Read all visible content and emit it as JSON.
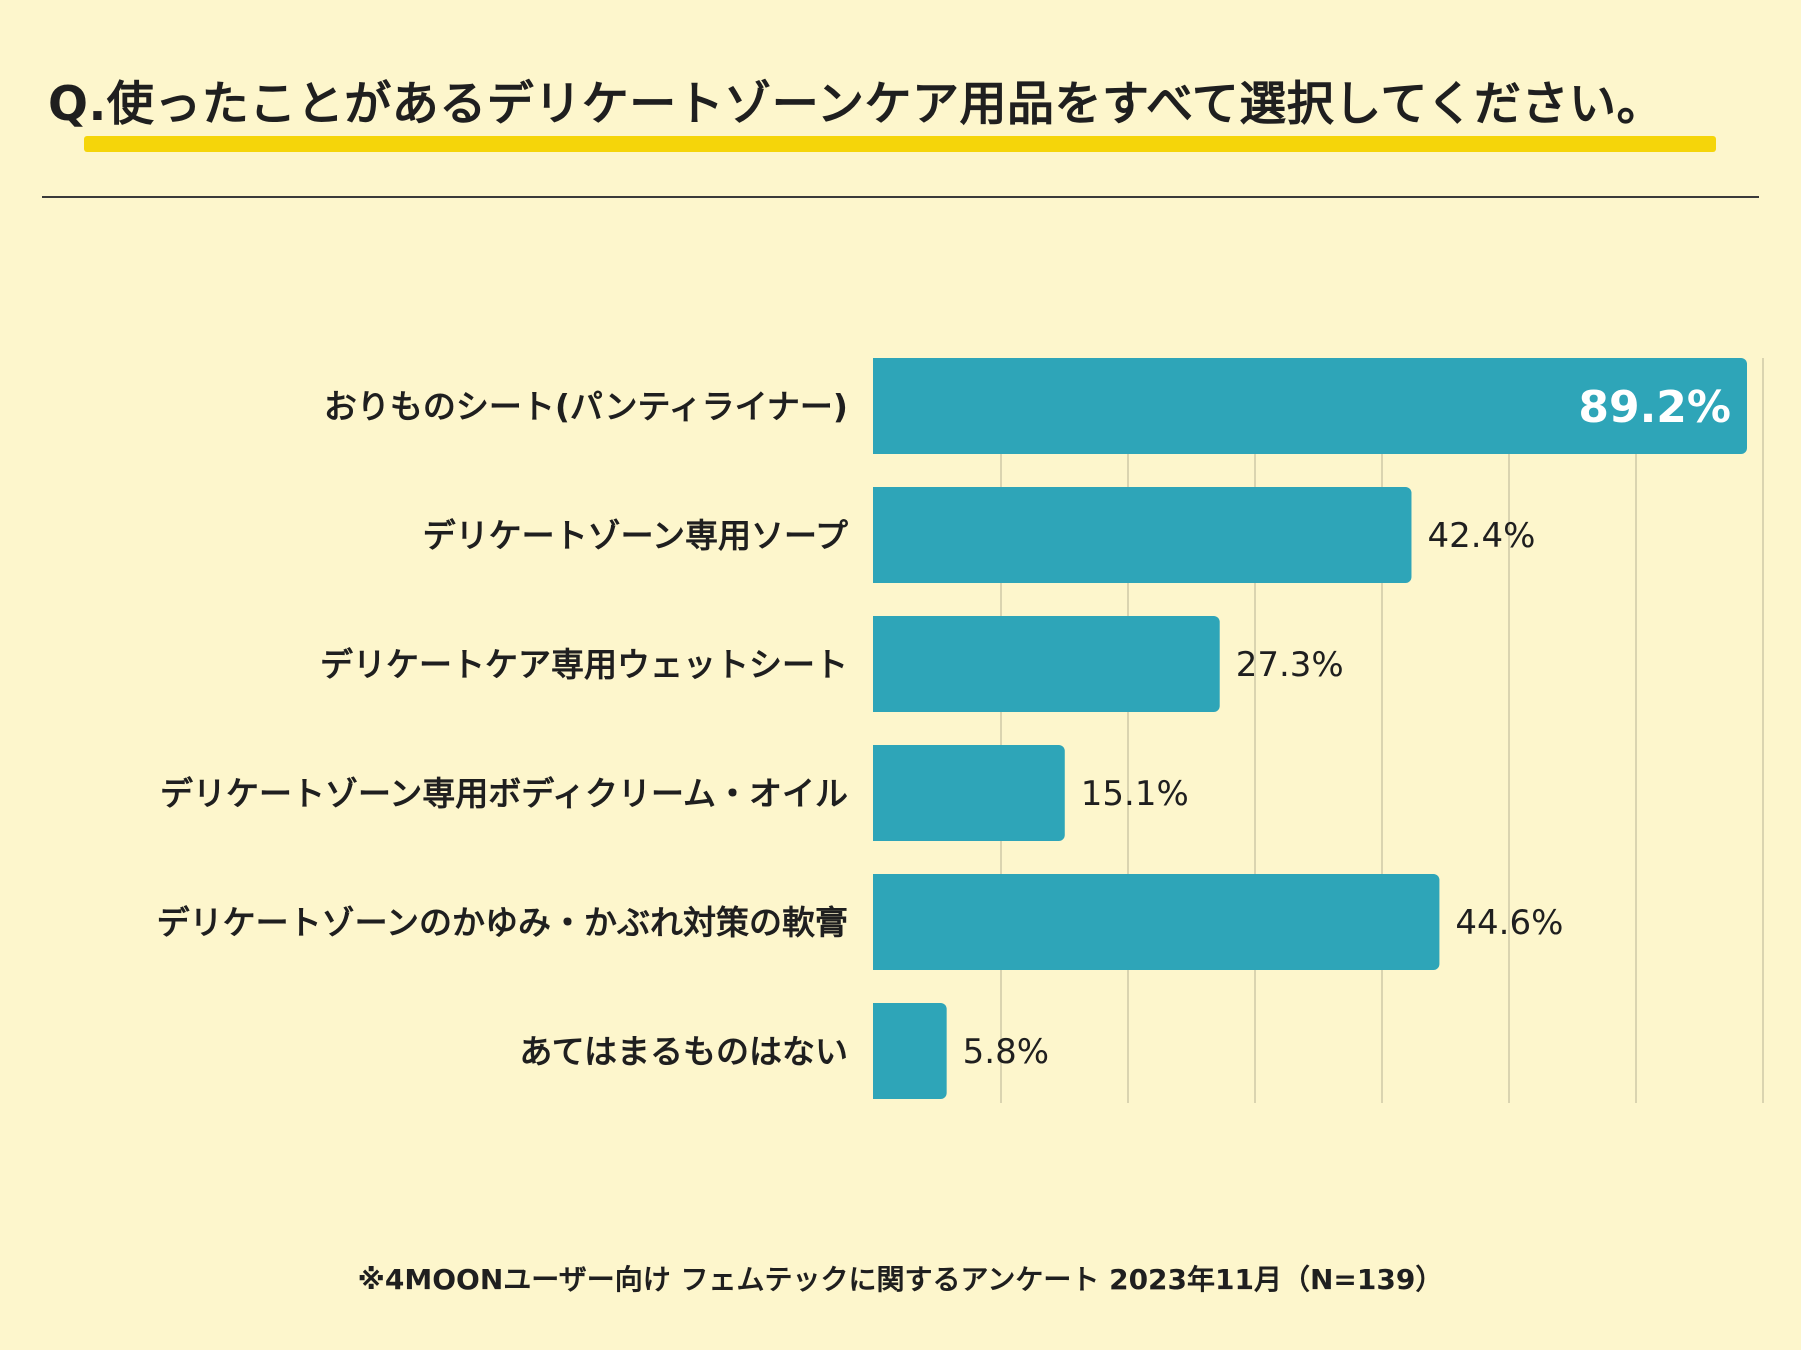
{
  "title": "Q.使ったことがあるデリケートゾーンケア用品をすべて選択してください。",
  "footer": "※4MOONユーザー向け フェムテックに関するアンケート 2023年11月（N=139）",
  "colors": {
    "bar": "#2ea5b8",
    "grid": "#cfc9a6",
    "background": "#fdf6cc",
    "underline": "#f5d50a"
  },
  "chart_data": {
    "type": "bar",
    "orientation": "horizontal",
    "title": "Q.使ったことがあるデリケートゾーンケア用品をすべて選択してください。",
    "xlim": [
      0,
      70
    ],
    "x_unit": "%",
    "grid": true,
    "categories": [
      "おりものシート(パンティライナー)",
      "デリケートゾーン専用ソープ",
      "デリケートケア専用ウェットシート",
      "デリケートゾーン専用ボディクリーム・オイル",
      "デリケートゾーンのかゆみ・かぶれ対策の軟膏",
      "あてはまるものはない"
    ],
    "values": [
      89.2,
      42.4,
      27.3,
      15.1,
      44.6,
      5.8
    ],
    "value_labels": [
      "89.2%",
      "42.4%",
      "27.3%",
      "15.1%",
      "44.6%",
      "5.8%"
    ]
  }
}
